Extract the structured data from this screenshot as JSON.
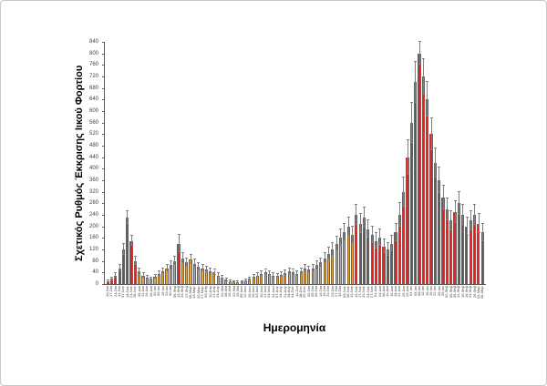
{
  "figure": {
    "title": "",
    "x_axis_title": "Ημερομηνία",
    "y_axis_title": "Σχετικός Ρυθμός Έκκρισης Ιικού Φορτίου"
  },
  "chart_data": {
    "type": "bar",
    "title": "",
    "xlabel": "Ημερομηνία",
    "ylabel": "Σχετικός Ρυθμός Έκκρισης Ιικού Φορτίου",
    "ylim": [
      0,
      840
    ],
    "ytick_step": 40,
    "grid": false,
    "legend": "none",
    "error_bars": true,
    "bar_colors": {
      "red": "#e02424",
      "orange": "#f0a22e"
    },
    "error_color": "#7f7f7f",
    "outline_color": "#646464",
    "points": [
      {
        "x": "10-Οκτ",
        "y": 10,
        "e": 4,
        "c": "red"
      },
      {
        "x": "17-Οκτ",
        "y": 18,
        "e": 5,
        "c": "red"
      },
      {
        "x": "24-Οκτ",
        "y": 30,
        "e": 7,
        "c": "red"
      },
      {
        "x": "31-Οκτ",
        "y": 55,
        "e": 10,
        "c": "red"
      },
      {
        "x": "07-Νοε",
        "y": 120,
        "e": 18,
        "c": "red"
      },
      {
        "x": "14-Νοε",
        "y": 230,
        "e": 22,
        "c": "red"
      },
      {
        "x": "21-Νοε",
        "y": 150,
        "e": 18,
        "c": "red"
      },
      {
        "x": "28-Νοε",
        "y": 80,
        "e": 14,
        "c": "red"
      },
      {
        "x": "05-Δεκ",
        "y": 45,
        "e": 10,
        "c": "orange"
      },
      {
        "x": "12-Δεκ",
        "y": 30,
        "e": 8,
        "c": "orange"
      },
      {
        "x": "19-Δεκ",
        "y": 22,
        "e": 6,
        "c": "orange"
      },
      {
        "x": "26-Δεκ",
        "y": 18,
        "e": 5,
        "c": "orange"
      },
      {
        "x": "02-Ιαν",
        "y": 25,
        "e": 7,
        "c": "orange"
      },
      {
        "x": "09-Ιαν",
        "y": 35,
        "e": 8,
        "c": "orange"
      },
      {
        "x": "16-Ιαν",
        "y": 45,
        "e": 10,
        "c": "orange"
      },
      {
        "x": "23-Ιαν",
        "y": 55,
        "e": 11,
        "c": "orange"
      },
      {
        "x": "30-Ιαν",
        "y": 65,
        "e": 13,
        "c": "orange"
      },
      {
        "x": "06-Φεβ",
        "y": 80,
        "e": 15,
        "c": "orange"
      },
      {
        "x": "13-Φεβ",
        "y": 140,
        "e": 30,
        "c": "red"
      },
      {
        "x": "20-Φεβ",
        "y": 90,
        "e": 18,
        "c": "orange"
      },
      {
        "x": "27-Φεβ",
        "y": 75,
        "e": 15,
        "c": "orange"
      },
      {
        "x": "06-Μαρ",
        "y": 85,
        "e": 16,
        "c": "orange"
      },
      {
        "x": "13-Μαρ",
        "y": 70,
        "e": 14,
        "c": "orange"
      },
      {
        "x": "20-Μαρ",
        "y": 60,
        "e": 12,
        "c": "orange"
      },
      {
        "x": "27-Μαρ",
        "y": 55,
        "e": 11,
        "c": "orange"
      },
      {
        "x": "03-Απρ",
        "y": 50,
        "e": 10,
        "c": "orange"
      },
      {
        "x": "10-Απρ",
        "y": 45,
        "e": 10,
        "c": "orange"
      },
      {
        "x": "17-Απρ",
        "y": 40,
        "e": 9,
        "c": "orange"
      },
      {
        "x": "24-Απρ",
        "y": 30,
        "e": 7,
        "c": "orange"
      },
      {
        "x": "01-Μαϊ",
        "y": 22,
        "e": 6,
        "c": "orange"
      },
      {
        "x": "08-Μαϊ",
        "y": 15,
        "e": 4,
        "c": "orange"
      },
      {
        "x": "15-Μαϊ",
        "y": 10,
        "e": 3,
        "c": "orange"
      },
      {
        "x": "22-Μαϊ",
        "y": 8,
        "e": 3,
        "c": "orange"
      },
      {
        "x": "29-Μαϊ",
        "y": 6,
        "e": 2,
        "c": "orange"
      },
      {
        "x": "05-Ιουν",
        "y": 8,
        "e": 3,
        "c": "orange"
      },
      {
        "x": "12-Ιουν",
        "y": 12,
        "e": 4,
        "c": "orange"
      },
      {
        "x": "19-Ιουν",
        "y": 18,
        "e": 5,
        "c": "orange"
      },
      {
        "x": "26-Ιουν",
        "y": 25,
        "e": 6,
        "c": "orange"
      },
      {
        "x": "03-Ιουλ",
        "y": 30,
        "e": 7,
        "c": "orange"
      },
      {
        "x": "10-Ιουλ",
        "y": 35,
        "e": 8,
        "c": "orange"
      },
      {
        "x": "17-Ιουλ",
        "y": 40,
        "e": 9,
        "c": "orange"
      },
      {
        "x": "24-Ιουλ",
        "y": 35,
        "e": 8,
        "c": "orange"
      },
      {
        "x": "31-Ιουλ",
        "y": 30,
        "e": 7,
        "c": "orange"
      },
      {
        "x": "07-Αυγ",
        "y": 28,
        "e": 7,
        "c": "orange"
      },
      {
        "x": "14-Αυγ",
        "y": 32,
        "e": 8,
        "c": "orange"
      },
      {
        "x": "21-Αυγ",
        "y": 38,
        "e": 9,
        "c": "orange"
      },
      {
        "x": "28-Αυγ",
        "y": 45,
        "e": 10,
        "c": "orange"
      },
      {
        "x": "04-Σεπ",
        "y": 40,
        "e": 9,
        "c": "orange"
      },
      {
        "x": "11-Σεπ",
        "y": 35,
        "e": 8,
        "c": "orange"
      },
      {
        "x": "18-Σεπ",
        "y": 45,
        "e": 10,
        "c": "orange"
      },
      {
        "x": "25-Σεπ",
        "y": 55,
        "e": 12,
        "c": "orange"
      },
      {
        "x": "02-Οκτ",
        "y": 50,
        "e": 11,
        "c": "orange"
      },
      {
        "x": "06-Οκτ",
        "y": 55,
        "e": 12,
        "c": "orange"
      },
      {
        "x": "09-Οκτ",
        "y": 65,
        "e": 14,
        "c": "orange"
      },
      {
        "x": "13-Οκτ",
        "y": 75,
        "e": 15,
        "c": "orange"
      },
      {
        "x": "16-Οκτ",
        "y": 90,
        "e": 18,
        "c": "orange"
      },
      {
        "x": "20-Οκτ",
        "y": 105,
        "e": 20,
        "c": "orange"
      },
      {
        "x": "23-Οκτ",
        "y": 120,
        "e": 22,
        "c": "orange"
      },
      {
        "x": "27-Οκτ",
        "y": 140,
        "e": 25,
        "c": "orange"
      },
      {
        "x": "30-Οκτ",
        "y": 160,
        "e": 28,
        "c": "orange"
      },
      {
        "x": "03-Νοε",
        "y": 180,
        "e": 30,
        "c": "orange"
      },
      {
        "x": "06-Νοε",
        "y": 200,
        "e": 32,
        "c": "orange"
      },
      {
        "x": "10-Νοε",
        "y": 170,
        "e": 28,
        "c": "orange"
      },
      {
        "x": "13-Νοε",
        "y": 240,
        "e": 36,
        "c": "red"
      },
      {
        "x": "17-Νοε",
        "y": 210,
        "e": 32,
        "c": "red"
      },
      {
        "x": "20-Νοε",
        "y": 230,
        "e": 34,
        "c": "red"
      },
      {
        "x": "24-Νοε",
        "y": 190,
        "e": 30,
        "c": "red"
      },
      {
        "x": "27-Νοε",
        "y": 170,
        "e": 28,
        "c": "red"
      },
      {
        "x": "01-Δεκ",
        "y": 150,
        "e": 26,
        "c": "red"
      },
      {
        "x": "04-Δεκ",
        "y": 160,
        "e": 28,
        "c": "red"
      },
      {
        "x": "08-Δεκ",
        "y": 130,
        "e": 24,
        "c": "red"
      },
      {
        "x": "11-Δεκ",
        "y": 120,
        "e": 22,
        "c": "red"
      },
      {
        "x": "15-Δεκ",
        "y": 140,
        "e": 26,
        "c": "red"
      },
      {
        "x": "18-Δεκ",
        "y": 180,
        "e": 30,
        "c": "red"
      },
      {
        "x": "22-Δεκ",
        "y": 240,
        "e": 40,
        "c": "red"
      },
      {
        "x": "25-Δεκ",
        "y": 320,
        "e": 50,
        "c": "red"
      },
      {
        "x": "29-Δεκ",
        "y": 440,
        "e": 60,
        "c": "red"
      },
      {
        "x": "01-Ιαν",
        "y": 560,
        "e": 70,
        "c": "red"
      },
      {
        "x": "05-Ιαν",
        "y": 700,
        "e": 70,
        "c": "red"
      },
      {
        "x": "08-Ιαν",
        "y": 800,
        "e": 40,
        "c": "red"
      },
      {
        "x": "12-Ιαν",
        "y": 720,
        "e": 60,
        "c": "red"
      },
      {
        "x": "15-Ιαν",
        "y": 640,
        "e": 60,
        "c": "red"
      },
      {
        "x": "19-Ιαν",
        "y": 520,
        "e": 55,
        "c": "red"
      },
      {
        "x": "22-Ιαν",
        "y": 420,
        "e": 50,
        "c": "red"
      },
      {
        "x": "26-Ιαν",
        "y": 360,
        "e": 45,
        "c": "red"
      },
      {
        "x": "29-Ιαν",
        "y": 300,
        "e": 42,
        "c": "red"
      },
      {
        "x": "02-Φεβ",
        "y": 260,
        "e": 38,
        "c": "red"
      },
      {
        "x": "05-Φεβ",
        "y": 220,
        "e": 34,
        "c": "red"
      },
      {
        "x": "09-Φεβ",
        "y": 250,
        "e": 38,
        "c": "red"
      },
      {
        "x": "12-Φεβ",
        "y": 280,
        "e": 40,
        "c": "red"
      },
      {
        "x": "16-Φεβ",
        "y": 240,
        "e": 36,
        "c": "red"
      },
      {
        "x": "19-Φεβ",
        "y": 200,
        "e": 32,
        "c": "red"
      },
      {
        "x": "23-Φεβ",
        "y": 220,
        "e": 34,
        "c": "red"
      },
      {
        "x": "26-Φεβ",
        "y": 240,
        "e": 36,
        "c": "red"
      },
      {
        "x": "02-Μαρ",
        "y": 210,
        "e": 32,
        "c": "red"
      },
      {
        "x": "05-Μαρ",
        "y": 180,
        "e": 30,
        "c": "red"
      }
    ]
  }
}
